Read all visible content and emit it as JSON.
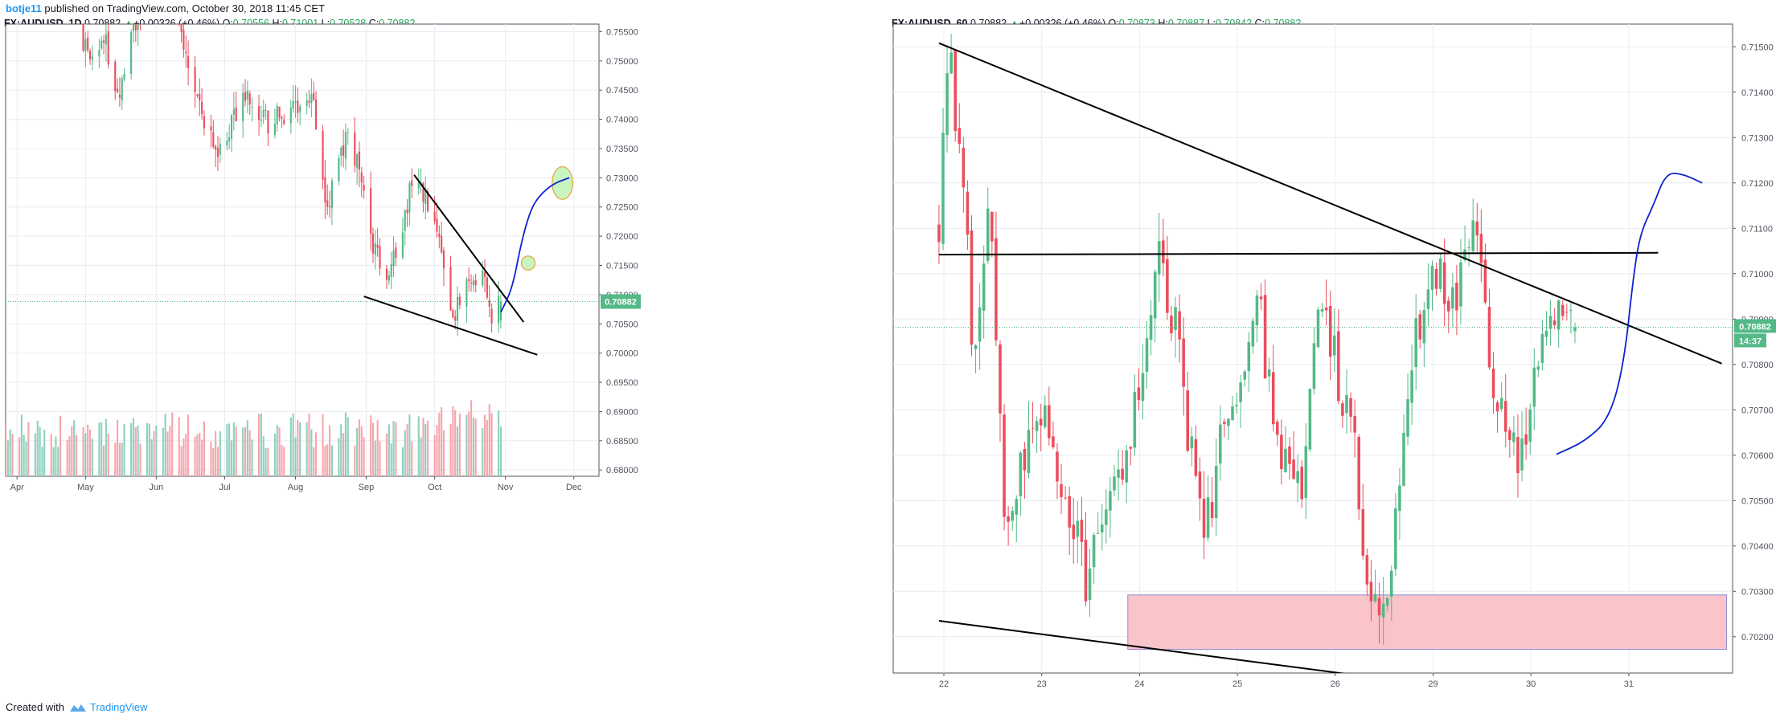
{
  "header": {
    "user": "botje11",
    "published": " published on TradingView.com, October 30, 2018 11:45 CET"
  },
  "footer": {
    "created_with": "Created with",
    "brand": "TradingView"
  },
  "colors": {
    "up": "#53b987",
    "down": "#eb4d5c",
    "vol_up": "#8fd1bf",
    "vol_down": "#f5a6ad",
    "draw": "#000000",
    "path": "#0d23d0",
    "ellipse": "#c8f5c0",
    "zone": "#f9c4ca",
    "price_label": "#53b987"
  },
  "chart_data": [
    {
      "type": "candlestick",
      "name": "left-daily",
      "legend": {
        "symbol": "FX:AUDUSD, 1D",
        "last": "0.70882",
        "change": "+0.00326 (+0.46%)",
        "O": "0.70556",
        "H": "0.71001",
        "L": "0.70528",
        "C": "0.70882"
      },
      "ylim": [
        0.6792,
        0.7563
      ],
      "y_ticks": [
        "0.75500",
        "0.75000",
        "0.74500",
        "0.74000",
        "0.73500",
        "0.73000",
        "0.72500",
        "0.72000",
        "0.71500",
        "0.71000",
        "0.70500",
        "0.70000",
        "0.69500",
        "0.69000",
        "0.68500",
        "0.68000"
      ],
      "x_ticks": [
        {
          "label": "Apr",
          "date": "2018-04-01"
        },
        {
          "label": "May",
          "date": "2018-05-01"
        },
        {
          "label": "Jun",
          "date": "2018-06-01"
        },
        {
          "label": "Jul",
          "date": "2018-07-01"
        },
        {
          "label": "Aug",
          "date": "2018-08-01"
        },
        {
          "label": "Sep",
          "date": "2018-09-01"
        },
        {
          "label": "Oct",
          "date": "2018-10-01"
        },
        {
          "label": "Nov",
          "date": "2018-11-01"
        },
        {
          "label": "Dec",
          "date": "2018-12-01"
        }
      ],
      "xlim": [
        "2018-03-27",
        "2018-12-12"
      ],
      "last_price": "0.70882",
      "anchors": [
        {
          "date": "2018-03-27",
          "price": 0.768
        },
        {
          "date": "2018-04-19",
          "price": 0.774
        },
        {
          "date": "2018-05-02",
          "price": 0.75
        },
        {
          "date": "2018-05-10",
          "price": 0.753
        },
        {
          "date": "2018-05-15",
          "price": 0.744
        },
        {
          "date": "2018-05-22",
          "price": 0.756
        },
        {
          "date": "2018-06-06",
          "price": 0.765
        },
        {
          "date": "2018-06-15",
          "price": 0.748
        },
        {
          "date": "2018-06-28",
          "price": 0.734
        },
        {
          "date": "2018-07-10",
          "price": 0.744
        },
        {
          "date": "2018-07-20",
          "price": 0.739
        },
        {
          "date": "2018-08-08",
          "price": 0.744
        },
        {
          "date": "2018-08-15",
          "price": 0.725
        },
        {
          "date": "2018-08-24",
          "price": 0.737
        },
        {
          "date": "2018-08-28",
          "price": 0.732
        },
        {
          "date": "2018-09-04",
          "price": 0.718
        },
        {
          "date": "2018-09-11",
          "price": 0.712
        },
        {
          "date": "2018-09-20",
          "price": 0.727
        },
        {
          "date": "2018-09-25",
          "price": 0.729
        },
        {
          "date": "2018-10-02",
          "price": 0.72
        },
        {
          "date": "2018-10-09",
          "price": 0.706
        },
        {
          "date": "2018-10-16",
          "price": 0.712
        },
        {
          "date": "2018-10-22",
          "price": 0.713
        },
        {
          "date": "2018-10-26",
          "price": 0.706
        },
        {
          "date": "2018-10-30",
          "price": 0.7088
        }
      ],
      "drawings": {
        "lines": [
          {
            "p1": [
              "2018-09-22",
              0.7305
            ],
            "p2": [
              "2018-11-09",
              0.7053
            ]
          },
          {
            "p1": [
              "2018-08-31",
              0.7097
            ],
            "p2": [
              "2018-11-15",
              0.6997
            ]
          }
        ],
        "ellipses": [
          {
            "center": [
              "2018-11-26",
              0.7291
            ],
            "rx_days": 4.5,
            "ry": 0.0028
          },
          {
            "center": [
              "2018-11-11",
              0.7154
            ],
            "rx_days": 3.0,
            "ry": 0.0012
          }
        ],
        "path": [
          [
            "2018-10-30",
            0.707
          ],
          [
            "2018-11-04",
            0.711
          ],
          [
            "2018-11-08",
            0.719
          ],
          [
            "2018-11-12",
            0.7245
          ],
          [
            "2018-11-16",
            0.727
          ],
          [
            "2018-11-22",
            0.729
          ],
          [
            "2018-11-29",
            0.73
          ]
        ]
      }
    },
    {
      "type": "candlestick",
      "name": "right-hourly",
      "legend": {
        "symbol": "FX:AUDUSD, 60",
        "last": "0.70882",
        "change": "+0.00326 (+0.46%)",
        "O": "0.70873",
        "H": "0.70887",
        "L": "0.70842",
        "C": "0.70882"
      },
      "ylim": [
        0.7012,
        0.7155
      ],
      "y_ticks": [
        "0.71500",
        "0.71400",
        "0.71300",
        "0.71200",
        "0.71100",
        "0.71000",
        "0.70900",
        "0.70800",
        "0.70700",
        "0.70600",
        "0.70500",
        "0.70400",
        "0.70300",
        "0.70200"
      ],
      "x_ticks": [
        {
          "label": "22",
          "session": 0
        },
        {
          "label": "23",
          "session": 1
        },
        {
          "label": "24",
          "session": 2
        },
        {
          "label": "25",
          "session": 3
        },
        {
          "label": "26",
          "session": 4
        },
        {
          "label": "29",
          "session": 5
        },
        {
          "label": "30",
          "session": 6
        },
        {
          "label": "31",
          "session": 7
        }
      ],
      "last_price": "0.70882",
      "countdown": "14:37",
      "anchors": [
        {
          "t": -0.05,
          "price": 0.711
        },
        {
          "t": 0.04,
          "price": 0.715
        },
        {
          "t": 0.2,
          "price": 0.712
        },
        {
          "t": 0.3,
          "price": 0.708
        },
        {
          "t": 0.48,
          "price": 0.7115
        },
        {
          "t": 0.62,
          "price": 0.704
        },
        {
          "t": 0.95,
          "price": 0.707
        },
        {
          "t": 1.15,
          "price": 0.706
        },
        {
          "t": 1.48,
          "price": 0.703
        },
        {
          "t": 1.55,
          "price": 0.704
        },
        {
          "t": 1.85,
          "price": 0.706
        },
        {
          "t": 2.2,
          "price": 0.7104
        },
        {
          "t": 2.35,
          "price": 0.709
        },
        {
          "t": 2.65,
          "price": 0.704
        },
        {
          "t": 2.85,
          "price": 0.7065
        },
        {
          "t": 3.05,
          "price": 0.708
        },
        {
          "t": 3.2,
          "price": 0.7097
        },
        {
          "t": 3.4,
          "price": 0.7062
        },
        {
          "t": 3.65,
          "price": 0.705
        },
        {
          "t": 3.8,
          "price": 0.709
        },
        {
          "t": 3.95,
          "price": 0.7085
        },
        {
          "t": 4.2,
          "price": 0.706
        },
        {
          "t": 4.3,
          "price": 0.7032
        },
        {
          "t": 4.55,
          "price": 0.7025
        },
        {
          "t": 4.68,
          "price": 0.706
        },
        {
          "t": 4.8,
          "price": 0.7085
        },
        {
          "t": 5.0,
          "price": 0.71
        },
        {
          "t": 5.25,
          "price": 0.7095
        },
        {
          "t": 5.45,
          "price": 0.711
        },
        {
          "t": 5.6,
          "price": 0.708
        },
        {
          "t": 5.78,
          "price": 0.706
        },
        {
          "t": 5.9,
          "price": 0.706
        },
        {
          "t": 6.08,
          "price": 0.7085
        },
        {
          "t": 6.25,
          "price": 0.7092
        },
        {
          "t": 6.45,
          "price": 0.7088
        }
      ],
      "drawings": {
        "lines": [
          {
            "p1": [
              -0.05,
              0.71508
            ],
            "p2": [
              7.95,
              0.70802
            ]
          },
          {
            "p1": [
              -0.05,
              0.71042
            ],
            "p2": [
              7.3,
              0.71046
            ]
          },
          {
            "p1": [
              -0.05,
              0.70235
            ],
            "p2": [
              4.4,
              0.7011
            ]
          }
        ],
        "zone": {
          "t1": 1.88,
          "t2": 8.0,
          "p1": 0.70292,
          "p2": 0.70172
        },
        "path": [
          [
            6.26,
            0.70602
          ],
          [
            6.55,
            0.7063
          ],
          [
            6.8,
            0.7068
          ],
          [
            6.95,
            0.708
          ],
          [
            7.05,
            0.71
          ],
          [
            7.12,
            0.7109
          ],
          [
            7.25,
            0.7115
          ],
          [
            7.38,
            0.71222
          ],
          [
            7.55,
            0.7122
          ],
          [
            7.75,
            0.712
          ]
        ]
      }
    }
  ]
}
